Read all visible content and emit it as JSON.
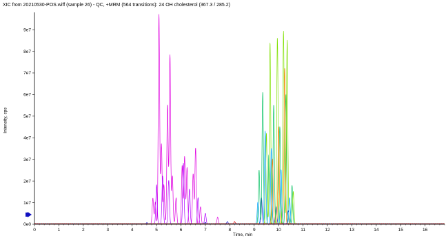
{
  "chart_data": {
    "type": "line",
    "title": "XIC from 20210530-POS.wiff (sample 26) - QC, +MRM (564 transitions): 24 OH cholesterol (367.3 / 285.2)",
    "xlabel": "Time, min",
    "ylabel": "Intensity, cps",
    "xlim": [
      0,
      16.8
    ],
    "ylim": [
      0,
      98000000.0
    ],
    "x_ticks": [
      "0",
      "1",
      "2",
      "3",
      "4",
      "5",
      "6",
      "7",
      "8",
      "9",
      "10",
      "11",
      "12",
      "13",
      "14",
      "15",
      "16"
    ],
    "y_ticks": [
      {
        "value": 0,
        "label": "0e0"
      },
      {
        "value": 10000000.0,
        "label": "1e7"
      },
      {
        "value": 20000000.0,
        "label": "2e7"
      },
      {
        "value": 30000000.0,
        "label": "3e7"
      },
      {
        "value": 40000000.0,
        "label": "4e7"
      },
      {
        "value": 50000000.0,
        "label": "5e7"
      },
      {
        "value": 60000000.0,
        "label": "6e7"
      },
      {
        "value": 70000000.0,
        "label": "7e7"
      },
      {
        "value": 80000000.0,
        "label": "8e7"
      },
      {
        "value": 90000000.0,
        "label": "9e7"
      }
    ],
    "grid": false,
    "series": [
      {
        "color": "#e000e0",
        "peaks": [
          [
            4.85,
            12000000.0
          ],
          [
            4.95,
            10000000.0
          ],
          [
            5.1,
            97000000.0
          ],
          [
            5.2,
            37000000.0
          ],
          [
            5.3,
            18000000.0
          ],
          [
            5.45,
            55000000.0
          ],
          [
            5.55,
            78000000.0
          ],
          [
            5.65,
            22000000.0
          ],
          [
            5.8,
            12000000.0
          ],
          [
            6.05,
            27000000.0
          ],
          [
            6.15,
            31000000.0
          ],
          [
            6.25,
            26000000.0
          ],
          [
            6.5,
            23000000.0
          ],
          [
            6.6,
            35000000.0
          ],
          [
            6.8,
            8000000.0
          ],
          [
            7.5,
            3000000.0
          ]
        ]
      },
      {
        "color": "#b000ff",
        "peaks": [
          [
            5.0,
            18000000.0
          ],
          [
            5.25,
            22000000.0
          ],
          [
            5.5,
            20000000.0
          ],
          [
            6.1,
            28000000.0
          ],
          [
            6.35,
            16000000.0
          ],
          [
            6.7,
            12000000.0
          ],
          [
            7.0,
            5000000.0
          ]
        ]
      },
      {
        "color": "#1010d0",
        "peaks": [
          [
            4.6,
            500000.0
          ],
          [
            7.0,
            600000.0
          ],
          [
            7.9,
            1000000.0
          ],
          [
            9.3,
            12000000.0
          ],
          [
            9.9,
            8000000.0
          ],
          [
            10.4,
            6000000.0
          ]
        ]
      },
      {
        "color": "#00c060",
        "peaks": [
          [
            9.2,
            25000000.0
          ],
          [
            9.35,
            61000000.0
          ],
          [
            9.6,
            32000000.0
          ],
          [
            9.8,
            55000000.0
          ],
          [
            10.05,
            45000000.0
          ],
          [
            10.3,
            60000000.0
          ],
          [
            10.55,
            18000000.0
          ]
        ]
      },
      {
        "color": "#80e000",
        "peaks": [
          [
            9.5,
            42000000.0
          ],
          [
            9.65,
            84000000.0
          ],
          [
            9.95,
            86000000.0
          ],
          [
            10.2,
            89000000.0
          ],
          [
            10.35,
            85000000.0
          ],
          [
            10.6,
            15000000.0
          ]
        ]
      },
      {
        "color": "#ff8000",
        "peaks": [
          [
            9.75,
            30000000.0
          ],
          [
            10.0,
            45000000.0
          ],
          [
            10.25,
            72000000.0
          ]
        ]
      },
      {
        "color": "#00a0ff",
        "peaks": [
          [
            9.15,
            10000000.0
          ],
          [
            9.45,
            43000000.0
          ],
          [
            9.7,
            35000000.0
          ],
          [
            10.1,
            25000000.0
          ],
          [
            10.45,
            12000000.0
          ]
        ]
      },
      {
        "color": "#e00000",
        "peaks": [
          [
            8.2,
            1000000.0
          ]
        ]
      }
    ]
  }
}
